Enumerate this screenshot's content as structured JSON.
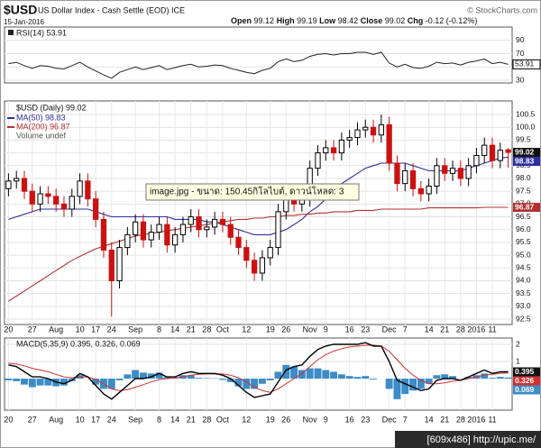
{
  "header": {
    "symbol": "$USD",
    "name": "US Dollar Index - Cash Settle (EOD) ICE",
    "date": "15-Jan-2016",
    "credit": "© StockCharts.com",
    "quote": [
      "Open",
      "99.12",
      "High",
      "99.19",
      "Low",
      "98.42",
      "Close",
      "99.02",
      "Chg",
      "-0.12 (-0.12%)"
    ]
  },
  "tooltip": "image.jpg - ขนาด: 150.45กิโลไบต์, ดาวน์โหลด: 3",
  "footer": "[609x486] http://upic.me/",
  "chart_data": [
    {
      "type": "line",
      "title": "RSI(14) 53.91",
      "color": "#222222",
      "values": [
        55,
        57,
        52,
        48,
        52,
        51,
        48,
        47,
        52,
        57,
        50,
        44,
        38,
        33,
        42,
        46,
        50,
        46,
        49,
        52,
        46,
        49,
        52,
        54,
        50,
        51,
        53,
        52,
        48,
        45,
        42,
        40,
        45,
        48,
        58,
        62,
        58,
        60,
        66,
        69,
        70,
        68,
        70,
        70,
        72,
        72,
        69,
        72,
        56,
        50,
        54,
        49,
        48,
        51,
        57,
        55,
        56,
        53,
        57,
        59,
        62,
        55,
        57,
        53.91
      ],
      "ylim": [
        26,
        110
      ],
      "yticks": [
        90,
        70,
        50,
        30
      ],
      "grid": true
    },
    {
      "type": "candlestick",
      "title": "$USD (Daily) 99.02",
      "volume_label": "Volume undef",
      "up_color": "#000000",
      "down_color": "#cc1111",
      "categories": [
        "20",
        null,
        null,
        "27",
        null,
        null,
        "Aug",
        null,
        null,
        "10",
        null,
        "17",
        null,
        "24",
        null,
        null,
        "Sep",
        null,
        null,
        "8",
        null,
        "14",
        null,
        "21",
        null,
        "28",
        null,
        "Oct",
        null,
        null,
        "12",
        null,
        null,
        "19",
        null,
        "26",
        null,
        null,
        "Nov",
        null,
        "9",
        null,
        null,
        "16",
        null,
        "23",
        null,
        null,
        "Dec",
        null,
        "7",
        null,
        null,
        "14",
        null,
        "21",
        null,
        "28",
        null,
        "2016",
        null,
        "11",
        null,
        null
      ],
      "open": [
        97.6,
        97.9,
        98.0,
        97.5,
        97.0,
        97.4,
        97.3,
        97.0,
        96.8,
        97.3,
        97.9,
        97.2,
        96.4,
        95.2,
        94.0,
        95.3,
        95.8,
        96.3,
        95.6,
        95.9,
        96.2,
        95.4,
        95.8,
        96.2,
        96.5,
        96.0,
        96.1,
        96.4,
        96.2,
        95.7,
        95.3,
        94.8,
        94.3,
        94.9,
        95.3,
        96.7,
        97.4,
        97.0,
        97.2,
        98.4,
        99.0,
        99.2,
        99.0,
        99.5,
        99.6,
        99.9,
        100.0,
        99.7,
        100.1,
        98.6,
        97.8,
        98.3,
        97.6,
        97.4,
        97.7,
        98.5,
        98.2,
        98.4,
        98.0,
        98.5,
        98.9,
        99.3,
        98.7,
        99.12
      ],
      "high": [
        98.2,
        98.3,
        98.3,
        97.8,
        97.7,
        97.7,
        97.6,
        97.3,
        97.6,
        98.2,
        98.2,
        97.5,
        96.7,
        95.5,
        95.6,
        96.1,
        96.6,
        96.6,
        96.2,
        96.5,
        96.5,
        96.1,
        96.5,
        96.8,
        96.8,
        96.4,
        96.7,
        96.7,
        96.5,
        96.0,
        95.6,
        95.1,
        95.2,
        95.6,
        97.0,
        97.7,
        97.7,
        97.5,
        98.7,
        99.3,
        99.5,
        99.5,
        99.8,
        99.9,
        100.2,
        100.3,
        100.3,
        100.5,
        100.4,
        98.9,
        98.6,
        98.6,
        97.9,
        98.0,
        98.8,
        98.8,
        98.7,
        98.7,
        98.8,
        99.2,
        99.6,
        99.6,
        99.4,
        99.19
      ],
      "low": [
        97.3,
        97.6,
        97.2,
        96.7,
        96.7,
        97.0,
        96.7,
        96.5,
        96.5,
        97.0,
        96.9,
        96.1,
        94.9,
        92.6,
        93.7,
        95.0,
        95.5,
        95.3,
        95.3,
        95.6,
        95.1,
        95.1,
        95.5,
        95.9,
        95.7,
        95.7,
        95.8,
        95.9,
        95.4,
        95.0,
        94.5,
        94.0,
        94.0,
        94.6,
        95.0,
        96.4,
        96.7,
        96.7,
        96.9,
        98.1,
        98.7,
        98.7,
        98.7,
        99.2,
        99.3,
        99.6,
        99.4,
        99.4,
        98.3,
        97.5,
        97.5,
        97.3,
        97.1,
        97.1,
        97.4,
        97.9,
        97.9,
        97.7,
        97.7,
        98.2,
        98.6,
        98.4,
        98.4,
        98.42
      ],
      "close": [
        97.9,
        98.0,
        97.5,
        97.0,
        97.4,
        97.3,
        97.0,
        96.8,
        97.3,
        97.9,
        97.2,
        96.4,
        95.2,
        94.0,
        95.3,
        95.8,
        96.3,
        95.6,
        95.9,
        96.2,
        95.4,
        95.8,
        96.2,
        96.5,
        96.0,
        96.1,
        96.4,
        96.2,
        95.7,
        95.3,
        94.8,
        94.3,
        94.9,
        95.3,
        96.7,
        97.4,
        97.0,
        97.2,
        98.4,
        99.0,
        99.2,
        99.0,
        99.5,
        99.6,
        99.9,
        100.0,
        99.7,
        100.1,
        98.6,
        97.8,
        98.3,
        97.6,
        97.4,
        97.7,
        98.5,
        98.2,
        98.4,
        98.0,
        98.5,
        98.9,
        99.3,
        98.7,
        99.1,
        99.02
      ],
      "series": [
        {
          "name": "MA(50) 98.83",
          "color": "#2e2e9e",
          "values": [
            96.4,
            96.5,
            96.6,
            96.7,
            96.8,
            96.8,
            96.8,
            96.8,
            96.8,
            96.8,
            96.8,
            96.7,
            96.6,
            96.5,
            96.5,
            96.5,
            96.5,
            96.5,
            96.5,
            96.5,
            96.5,
            96.4,
            96.4,
            96.4,
            96.4,
            96.3,
            96.3,
            96.2,
            96.1,
            96.0,
            95.9,
            95.8,
            95.8,
            95.8,
            95.9,
            96.0,
            96.2,
            96.4,
            96.7,
            96.9,
            97.2,
            97.5,
            97.8,
            98.0,
            98.2,
            98.4,
            98.5,
            98.6,
            98.6,
            98.6,
            98.6,
            98.5,
            98.4,
            98.3,
            98.3,
            98.3,
            98.3,
            98.3,
            98.4,
            98.5,
            98.6,
            98.7,
            98.8,
            98.83
          ]
        },
        {
          "name": "MA(200) 96.87",
          "color": "#b23030",
          "values": [
            93.2,
            93.4,
            93.6,
            93.8,
            94.0,
            94.2,
            94.4,
            94.6,
            94.8,
            94.95,
            95.1,
            95.25,
            95.35,
            95.45,
            95.55,
            95.65,
            95.75,
            95.8,
            95.85,
            95.9,
            95.95,
            96.0,
            96.05,
            96.1,
            96.15,
            96.2,
            96.25,
            96.3,
            96.35,
            96.4,
            96.4,
            96.45,
            96.45,
            96.5,
            96.5,
            96.55,
            96.55,
            96.6,
            96.6,
            96.65,
            96.65,
            96.7,
            96.7,
            96.7,
            96.75,
            96.75,
            96.75,
            96.8,
            96.8,
            96.8,
            96.8,
            96.8,
            96.8,
            96.85,
            96.85,
            96.85,
            96.85,
            96.85,
            96.85,
            96.85,
            96.87,
            96.87,
            96.87,
            96.87
          ]
        }
      ],
      "ylim": [
        92.29,
        101.03
      ],
      "yticks": [
        100.5,
        {
          "value": 100,
          "label": "100.0"
        },
        99.5,
        {
          "value": 99,
          "label": "99.0"
        },
        98.5,
        {
          "value": 98,
          "label": "98.0"
        },
        97.5,
        {
          "value": 97,
          "label": "97.0"
        },
        96.5,
        {
          "value": 96,
          "label": "96.0"
        },
        95.5,
        {
          "value": 95,
          "label": "95.0"
        },
        94.5,
        {
          "value": 94,
          "label": "94.0"
        },
        93.5,
        {
          "value": 93,
          "label": "93.0"
        },
        92.5
      ],
      "grid": true
    },
    {
      "type": "macd",
      "title": "MACD(5,35,9) 0.395, 0.326, 0.069",
      "categories": [
        "20",
        null,
        null,
        "27",
        null,
        null,
        "Aug",
        null,
        null,
        "10",
        null,
        "17",
        null,
        "24",
        null,
        null,
        "Sep",
        null,
        null,
        "8",
        null,
        "14",
        null,
        "21",
        null,
        "28",
        null,
        "Oct",
        null,
        null,
        "12",
        null,
        null,
        "19",
        null,
        "26",
        null,
        null,
        "Nov",
        null,
        "9",
        null,
        null,
        "16",
        null,
        "23",
        null,
        null,
        "Dec",
        null,
        "7",
        null,
        null,
        "14",
        null,
        "21",
        null,
        "28",
        null,
        "2016",
        null,
        "11",
        null,
        null
      ],
      "color": "#000000",
      "signal_color": "#d03030",
      "histogram_color": "#3c8cc8",
      "values": [
        0.8,
        0.7,
        0.4,
        0.1,
        0.1,
        0.0,
        -0.2,
        -0.3,
        -0.1,
        0.3,
        0.1,
        -0.4,
        -0.9,
        -1.2,
        -0.8,
        -0.4,
        0.0,
        0.0,
        0.1,
        0.3,
        0.1,
        0.1,
        0.3,
        0.4,
        0.3,
        0.3,
        0.3,
        0.2,
        0.0,
        -0.4,
        -0.8,
        -1.1,
        -1.0,
        -0.9,
        -0.2,
        0.5,
        0.7,
        0.8,
        1.3,
        1.7,
        1.9,
        2.0,
        2.0,
        2.0,
        2.0,
        2.1,
        1.9,
        1.9,
        1.0,
        -0.1,
        -0.3,
        -0.5,
        -0.7,
        -0.6,
        -0.1,
        0.0,
        0.0,
        -0.1,
        0.1,
        0.3,
        0.5,
        0.3,
        0.4,
        0.395
      ],
      "signal": [
        0.9,
        0.85,
        0.75,
        0.6,
        0.5,
        0.4,
        0.25,
        0.1,
        0.05,
        0.1,
        0.1,
        -0.05,
        -0.3,
        -0.6,
        -0.7,
        -0.65,
        -0.5,
        -0.35,
        -0.2,
        -0.05,
        0.0,
        0.05,
        0.1,
        0.2,
        0.25,
        0.27,
        0.28,
        0.27,
        0.2,
        0.05,
        -0.2,
        -0.5,
        -0.7,
        -0.8,
        -0.6,
        -0.3,
        0.0,
        0.3,
        0.7,
        1.1,
        1.4,
        1.6,
        1.75,
        1.85,
        1.9,
        1.95,
        1.95,
        1.9,
        1.6,
        1.1,
        0.6,
        0.2,
        -0.1,
        -0.3,
        -0.3,
        -0.25,
        -0.15,
        -0.1,
        0.0,
        0.1,
        0.2,
        0.25,
        0.3,
        0.326
      ],
      "histogram": [
        -0.1,
        -0.15,
        -0.35,
        -0.5,
        -0.4,
        -0.4,
        -0.45,
        -0.4,
        -0.15,
        0.2,
        0.0,
        -0.35,
        -0.6,
        -0.6,
        -0.1,
        0.25,
        0.5,
        0.35,
        0.3,
        0.35,
        0.1,
        0.05,
        0.2,
        0.2,
        0.05,
        0.03,
        0.02,
        -0.07,
        -0.2,
        -0.45,
        -0.6,
        -0.6,
        -0.3,
        -0.1,
        0.4,
        0.8,
        0.7,
        0.5,
        0.6,
        0.6,
        0.5,
        0.4,
        0.25,
        0.15,
        0.1,
        0.15,
        -0.05,
        0.0,
        -0.6,
        -1.2,
        -0.9,
        -0.7,
        -0.6,
        -0.3,
        0.2,
        0.25,
        0.15,
        0.0,
        0.1,
        0.2,
        0.3,
        0.05,
        0.1,
        0.069
      ],
      "ylim": [
        -1.84,
        2.37
      ],
      "yticks": [
        2,
        1
      ],
      "grid": true
    }
  ]
}
